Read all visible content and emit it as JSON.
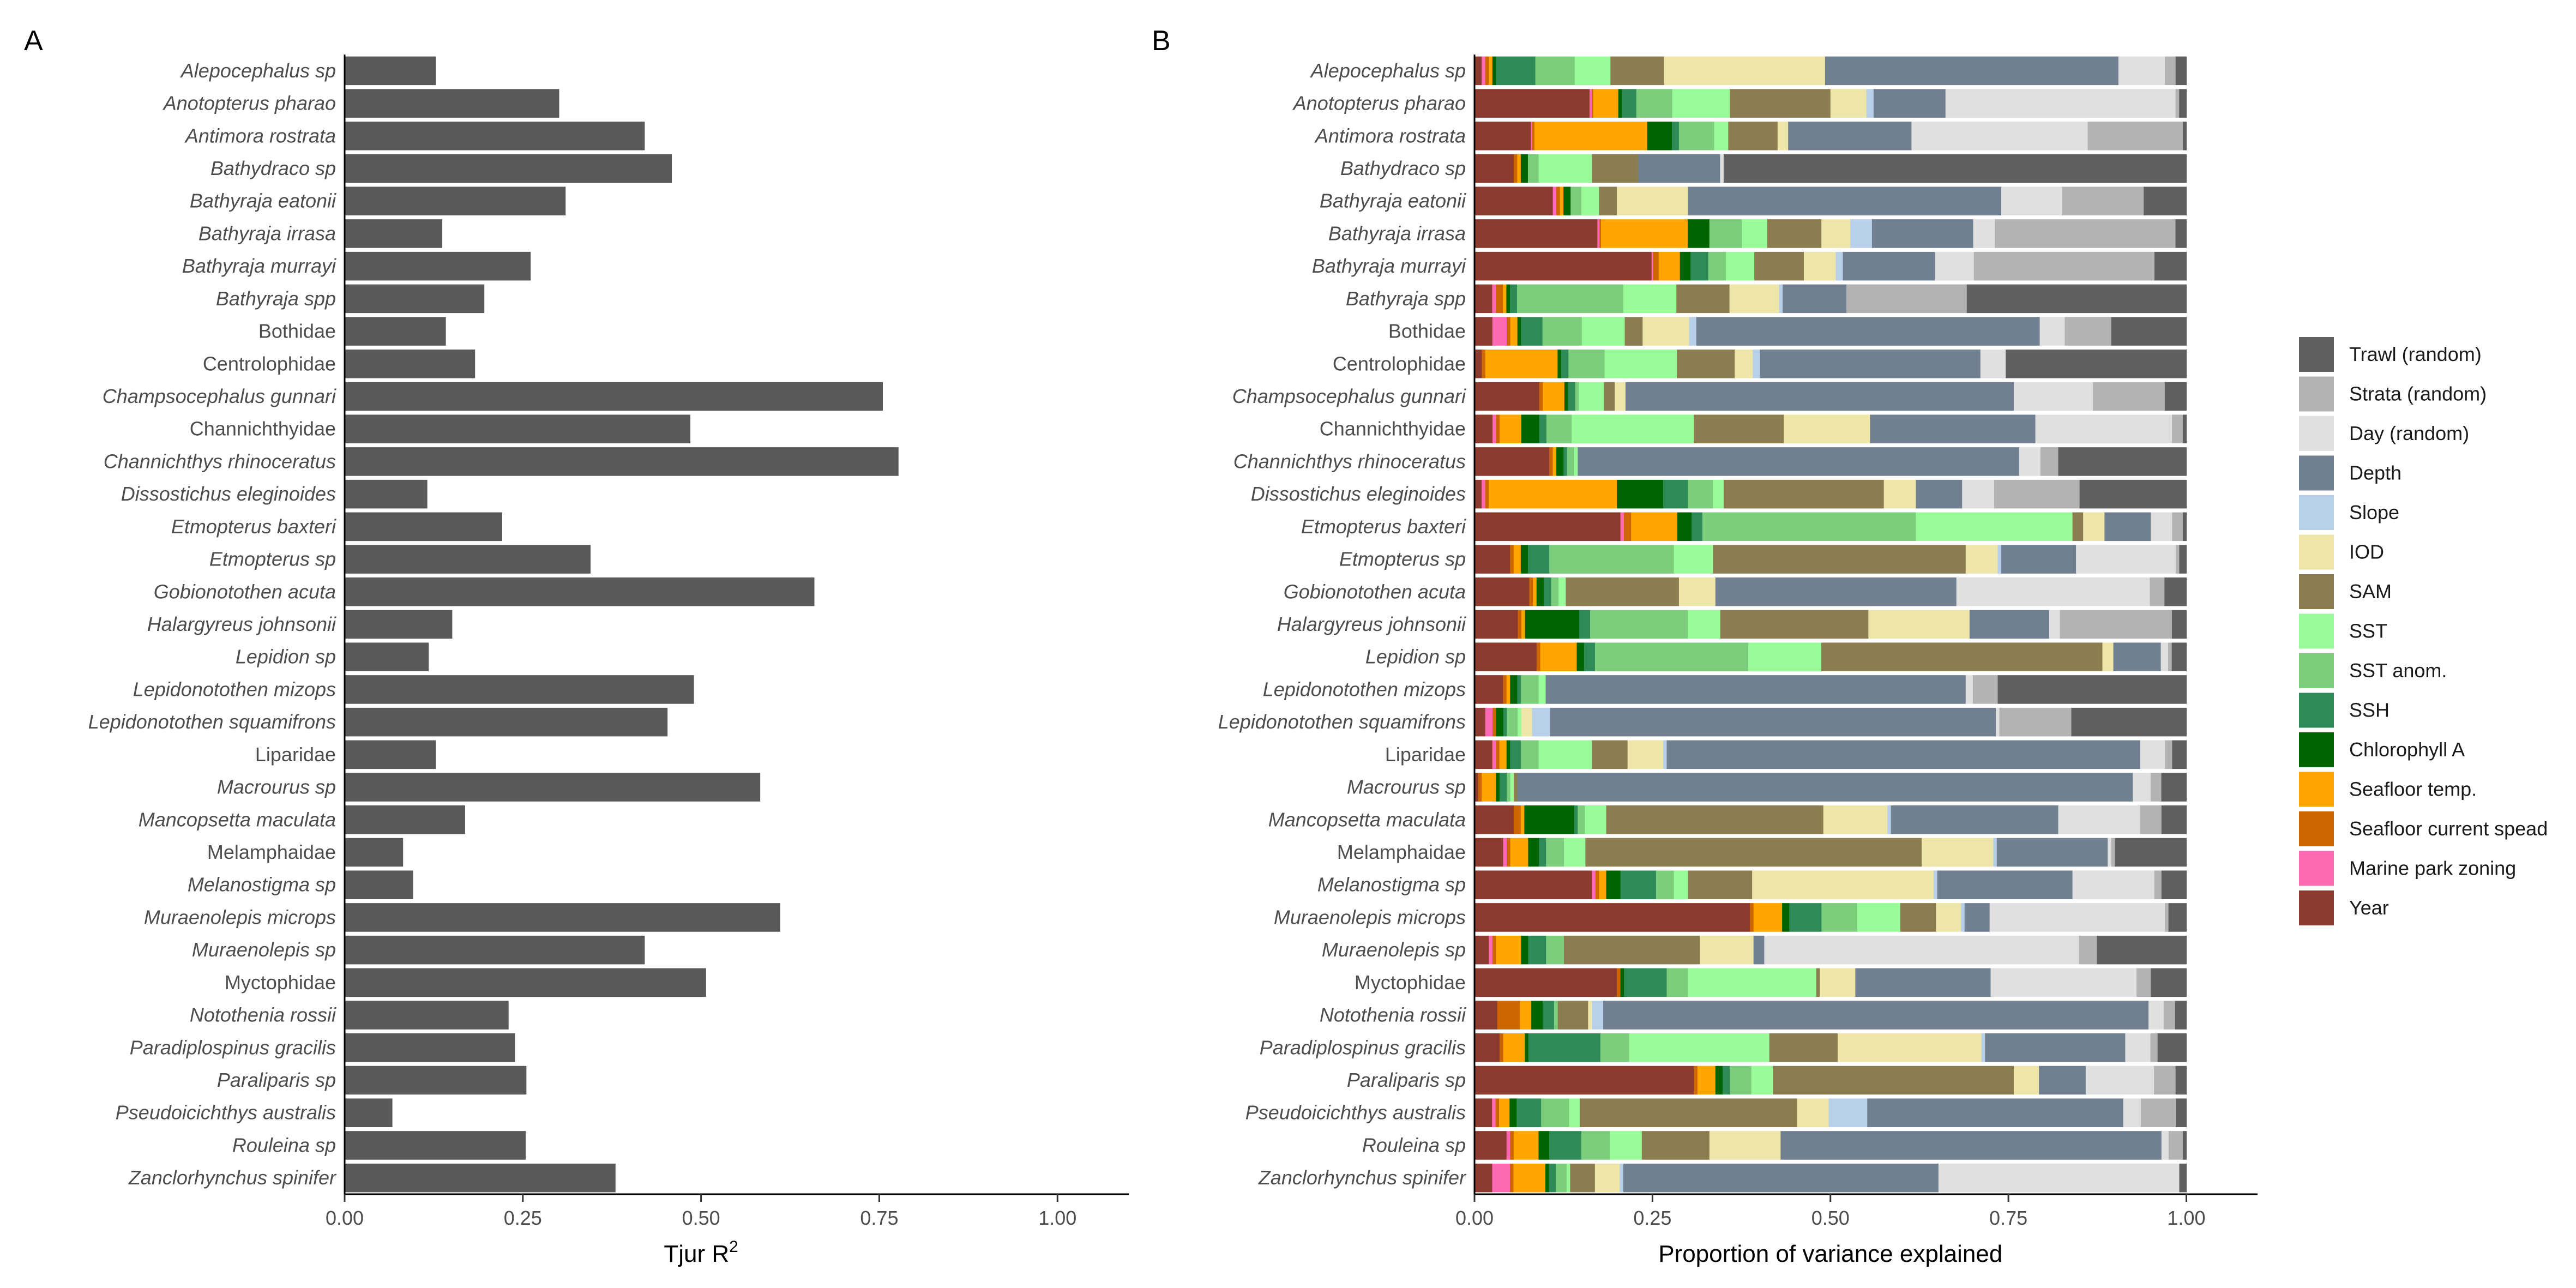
{
  "chart_data": [
    {
      "panel": "A",
      "type": "bar",
      "orientation": "horizontal",
      "xlabel": "Tjur R",
      "xlabel_superscript": "2",
      "xlim": [
        0,
        1.1
      ],
      "xticks": [
        "0.00",
        "0.25",
        "0.50",
        "0.75",
        "1.00"
      ],
      "xtick_values": [
        0,
        0.25,
        0.5,
        0.75,
        1.0
      ],
      "bar_color": "#595959",
      "categories": [
        {
          "name": "Alepocephalus sp",
          "italic": true
        },
        {
          "name": "Anotopterus pharao",
          "italic": true
        },
        {
          "name": "Antimora rostrata",
          "italic": true
        },
        {
          "name": "Bathydraco sp",
          "italic": true
        },
        {
          "name": "Bathyraja eatonii",
          "italic": true
        },
        {
          "name": "Bathyraja irrasa",
          "italic": true
        },
        {
          "name": "Bathyraja murrayi",
          "italic": true
        },
        {
          "name": "Bathyraja spp",
          "italic": true
        },
        {
          "name": "Bothidae",
          "italic": false
        },
        {
          "name": "Centrolophidae",
          "italic": false
        },
        {
          "name": "Champsocephalus gunnari",
          "italic": true
        },
        {
          "name": "Channichthyidae",
          "italic": false
        },
        {
          "name": "Channichthys rhinoceratus",
          "italic": true
        },
        {
          "name": "Dissostichus eleginoides",
          "italic": true
        },
        {
          "name": "Etmopterus baxteri",
          "italic": true
        },
        {
          "name": "Etmopterus sp",
          "italic": true
        },
        {
          "name": "Gobionotothen acuta",
          "italic": true
        },
        {
          "name": "Halargyreus johnsonii",
          "italic": true
        },
        {
          "name": "Lepidion sp",
          "italic": true
        },
        {
          "name": "Lepidonotothen mizops",
          "italic": true
        },
        {
          "name": "Lepidonotothen squamifrons",
          "italic": true
        },
        {
          "name": "Liparidae",
          "italic": false
        },
        {
          "name": "Macrourus sp",
          "italic": true
        },
        {
          "name": "Mancopsetta maculata",
          "italic": true
        },
        {
          "name": "Melamphaidae",
          "italic": false
        },
        {
          "name": "Melanostigma sp",
          "italic": true
        },
        {
          "name": "Muraenolepis microps",
          "italic": true
        },
        {
          "name": "Muraenolepis sp",
          "italic": true
        },
        {
          "name": "Myctophidae",
          "italic": false
        },
        {
          "name": "Notothenia rossii",
          "italic": true
        },
        {
          "name": "Paradiplospinus gracilis",
          "italic": true
        },
        {
          "name": "Paraliparis sp",
          "italic": true
        },
        {
          "name": "Pseudoicichthys australis",
          "italic": true
        },
        {
          "name": "Rouleina sp",
          "italic": true
        },
        {
          "name": "Zanclorhynchus spinifer",
          "italic": true
        }
      ],
      "values": [
        0.128,
        0.301,
        0.421,
        0.459,
        0.31,
        0.137,
        0.261,
        0.196,
        0.142,
        0.183,
        0.755,
        0.485,
        0.777,
        0.116,
        0.221,
        0.345,
        0.659,
        0.151,
        0.118,
        0.49,
        0.453,
        0.128,
        0.583,
        0.169,
        0.082,
        0.096,
        0.611,
        0.421,
        0.507,
        0.23,
        0.239,
        0.255,
        0.067,
        0.254,
        0.38
      ]
    },
    {
      "panel": "B",
      "type": "bar",
      "orientation": "horizontal",
      "stacked": true,
      "xlabel": "Proportion of variance explained",
      "xlim": [
        0,
        1.1
      ],
      "xticks": [
        "0.00",
        "0.25",
        "0.50",
        "0.75",
        "1.00"
      ],
      "xtick_values": [
        0,
        0.25,
        0.5,
        0.75,
        1.0
      ],
      "stack_order": [
        "Year",
        "Marine park zoning",
        "Seafloor current spead",
        "Seafloor temp.",
        "Chlorophyll A",
        "SSH",
        "SST anom.",
        "SST",
        "SAM",
        "IOD",
        "Slope",
        "Depth",
        "Day (random)",
        "Strata (random)",
        "Trawl (random)"
      ],
      "legend": [
        {
          "name": "Trawl (random)",
          "color": "#5f5f5f"
        },
        {
          "name": "Strata (random)",
          "color": "#b3b3b3"
        },
        {
          "name": "Day (random)",
          "color": "#e0e0e0"
        },
        {
          "name": "Depth",
          "color": "#708090"
        },
        {
          "name": "Slope",
          "color": "#b8d0ea"
        },
        {
          "name": "IOD",
          "color": "#eee5a8"
        },
        {
          "name": "SAM",
          "color": "#8b7d4f"
        },
        {
          "name": "SST",
          "color": "#98fb98"
        },
        {
          "name": "SST anom.",
          "color": "#7ccd7c"
        },
        {
          "name": "SSH",
          "color": "#2e8b57"
        },
        {
          "name": "Chlorophyll A",
          "color": "#006400"
        },
        {
          "name": "Seafloor temp.",
          "color": "#ffa500"
        },
        {
          "name": "Seafloor current spead",
          "color": "#cd6600"
        },
        {
          "name": "Marine park zoning",
          "color": "#ff69b4"
        },
        {
          "name": "Year",
          "color": "#8b3a2e"
        }
      ],
      "legend_position": "right",
      "rows": [
        [
          0.01,
          0.005,
          0.005,
          0.005,
          0.005,
          0.055,
          0.055,
          0.05,
          0.075,
          0.225,
          0.0,
          0.41,
          0.065,
          0.015,
          0.015
        ],
        [
          0.16,
          0.003,
          0.002,
          0.035,
          0.005,
          0.02,
          0.05,
          0.08,
          0.14,
          0.05,
          0.01,
          0.1,
          0.32,
          0.005,
          0.01
        ],
        [
          0.08,
          0.002,
          0.003,
          0.16,
          0.035,
          0.01,
          0.05,
          0.02,
          0.07,
          0.015,
          0.0,
          0.175,
          0.25,
          0.135,
          0.005
        ],
        [
          0.055,
          0.0,
          0.005,
          0.005,
          0.01,
          0.0,
          0.015,
          0.075,
          0.065,
          0.0,
          0.0,
          0.115,
          0.005,
          0.0,
          0.65
        ],
        [
          0.11,
          0.005,
          0.005,
          0.005,
          0.01,
          0.0,
          0.015,
          0.025,
          0.025,
          0.1,
          0.0,
          0.44,
          0.085,
          0.115,
          0.06
        ],
        [
          0.17,
          0.003,
          0.002,
          0.12,
          0.03,
          0.0,
          0.045,
          0.035,
          0.075,
          0.04,
          0.03,
          0.14,
          0.03,
          0.25,
          0.015
        ],
        [
          0.25,
          0.002,
          0.008,
          0.03,
          0.015,
          0.025,
          0.025,
          0.04,
          0.07,
          0.045,
          0.01,
          0.13,
          0.055,
          0.255,
          0.045
        ],
        [
          0.025,
          0.005,
          0.01,
          0.005,
          0.005,
          0.01,
          0.15,
          0.075,
          0.075,
          0.07,
          0.005,
          0.09,
          0.0,
          0.17,
          0.31
        ],
        [
          0.025,
          0.02,
          0.005,
          0.01,
          0.005,
          0.03,
          0.055,
          0.06,
          0.025,
          0.065,
          0.01,
          0.48,
          0.035,
          0.065,
          0.105
        ],
        [
          0.01,
          0.0,
          0.005,
          0.1,
          0.005,
          0.01,
          0.05,
          0.1,
          0.08,
          0.025,
          0.01,
          0.305,
          0.035,
          0.0,
          0.25
        ],
        [
          0.09,
          0.0,
          0.005,
          0.03,
          0.005,
          0.01,
          0.005,
          0.035,
          0.015,
          0.015,
          0.0,
          0.54,
          0.11,
          0.1,
          0.03
        ],
        [
          0.025,
          0.005,
          0.005,
          0.03,
          0.025,
          0.01,
          0.035,
          0.17,
          0.125,
          0.12,
          0.0,
          0.23,
          0.19,
          0.015,
          0.005
        ],
        [
          0.105,
          0.0,
          0.005,
          0.005,
          0.01,
          0.005,
          0.01,
          0.005,
          0.0,
          0.0,
          0.0,
          0.62,
          0.03,
          0.025,
          0.18
        ],
        [
          0.01,
          0.005,
          0.005,
          0.18,
          0.065,
          0.035,
          0.035,
          0.015,
          0.225,
          0.045,
          0.0,
          0.065,
          0.045,
          0.12,
          0.15
        ],
        [
          0.205,
          0.005,
          0.01,
          0.065,
          0.02,
          0.015,
          0.3,
          0.22,
          0.015,
          0.03,
          0.0,
          0.065,
          0.03,
          0.015,
          0.005
        ],
        [
          0.05,
          0.0,
          0.005,
          0.01,
          0.01,
          0.03,
          0.175,
          0.055,
          0.355,
          0.045,
          0.005,
          0.105,
          0.14,
          0.005,
          0.01
        ],
        [
          0.075,
          0.0,
          0.005,
          0.005,
          0.01,
          0.01,
          0.01,
          0.01,
          0.155,
          0.05,
          0.0,
          0.33,
          0.265,
          0.02,
          0.03
        ],
        [
          0.06,
          0.0,
          0.005,
          0.005,
          0.075,
          0.015,
          0.135,
          0.045,
          0.205,
          0.14,
          0.0,
          0.11,
          0.015,
          0.155,
          0.02
        ],
        [
          0.085,
          0.0,
          0.005,
          0.05,
          0.01,
          0.015,
          0.21,
          0.1,
          0.385,
          0.015,
          0.0,
          0.065,
          0.01,
          0.005,
          0.02
        ],
        [
          0.04,
          0.0,
          0.005,
          0.005,
          0.01,
          0.005,
          0.025,
          0.01,
          0.0,
          0.0,
          0.0,
          0.59,
          0.01,
          0.035,
          0.265
        ],
        [
          0.015,
          0.01,
          0.005,
          0.0,
          0.01,
          0.005,
          0.015,
          0.005,
          0.0,
          0.015,
          0.025,
          0.62,
          0.005,
          0.1,
          0.16
        ],
        [
          0.025,
          0.005,
          0.005,
          0.01,
          0.005,
          0.015,
          0.025,
          0.075,
          0.05,
          0.05,
          0.005,
          0.665,
          0.035,
          0.01,
          0.02
        ],
        [
          0.005,
          0.0,
          0.005,
          0.02,
          0.005,
          0.01,
          0.005,
          0.005,
          0.005,
          0.0,
          0.0,
          0.86,
          0.025,
          0.015,
          0.035
        ],
        [
          0.055,
          0.0,
          0.01,
          0.005,
          0.07,
          0.005,
          0.01,
          0.03,
          0.305,
          0.09,
          0.005,
          0.235,
          0.115,
          0.03,
          0.035
        ],
        [
          0.04,
          0.005,
          0.005,
          0.025,
          0.015,
          0.01,
          0.025,
          0.03,
          0.47,
          0.1,
          0.005,
          0.155,
          0.005,
          0.005,
          0.1
        ],
        [
          0.165,
          0.005,
          0.005,
          0.01,
          0.02,
          0.05,
          0.025,
          0.02,
          0.09,
          0.255,
          0.005,
          0.19,
          0.115,
          0.01,
          0.035
        ],
        [
          0.385,
          0.0,
          0.005,
          0.04,
          0.01,
          0.045,
          0.05,
          0.06,
          0.05,
          0.035,
          0.005,
          0.035,
          0.245,
          0.005,
          0.025
        ],
        [
          0.02,
          0.005,
          0.005,
          0.035,
          0.01,
          0.025,
          0.025,
          0.0,
          0.19,
          0.075,
          0.0,
          0.015,
          0.44,
          0.025,
          0.125
        ],
        [
          0.2,
          0.0,
          0.005,
          0.0,
          0.005,
          0.06,
          0.03,
          0.18,
          0.005,
          0.05,
          0.0,
          0.19,
          0.205,
          0.02,
          0.05
        ],
        [
          0.03,
          0.0,
          0.03,
          0.015,
          0.015,
          0.015,
          0.005,
          0.0,
          0.04,
          0.005,
          0.015,
          0.72,
          0.02,
          0.015,
          0.015
        ],
        [
          0.035,
          0.0,
          0.005,
          0.03,
          0.005,
          0.1,
          0.04,
          0.195,
          0.095,
          0.2,
          0.005,
          0.195,
          0.035,
          0.01,
          0.04
        ],
        [
          0.305,
          0.0,
          0.005,
          0.025,
          0.01,
          0.01,
          0.03,
          0.03,
          0.335,
          0.035,
          0.0,
          0.065,
          0.095,
          0.03,
          0.015
        ],
        [
          0.025,
          0.005,
          0.005,
          0.015,
          0.01,
          0.035,
          0.04,
          0.015,
          0.31,
          0.045,
          0.055,
          0.365,
          0.025,
          0.05,
          0.015
        ],
        [
          0.045,
          0.005,
          0.005,
          0.035,
          0.015,
          0.045,
          0.04,
          0.045,
          0.095,
          0.1,
          0.0,
          0.535,
          0.01,
          0.02,
          0.005
        ],
        [
          0.025,
          0.025,
          0.005,
          0.045,
          0.005,
          0.01,
          0.015,
          0.005,
          0.035,
          0.035,
          0.005,
          0.445,
          0.34,
          0.0,
          0.01
        ]
      ]
    }
  ],
  "panels": {
    "a_tag": "A",
    "b_tag": "B"
  }
}
